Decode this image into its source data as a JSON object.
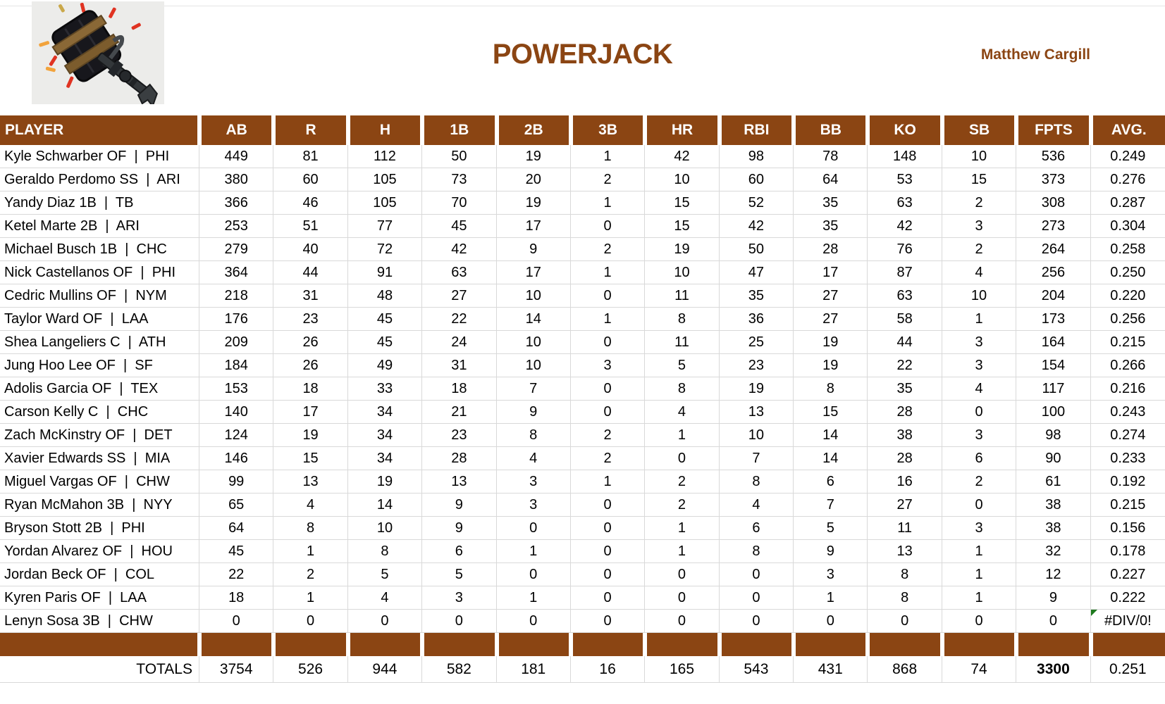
{
  "header": {
    "title": "POWERJACK",
    "owner": "Matthew Cargill",
    "logo_icon": "powerjack-hammer-logo"
  },
  "theme": {
    "brown": "#8B4513",
    "grid_line": "#D9D9D9",
    "header_text": "#FFFFFF",
    "error_green": "#1E7A1E"
  },
  "table": {
    "columns": [
      "PLAYER",
      "AB",
      "R",
      "H",
      "1B",
      "2B",
      "3B",
      "HR",
      "RBI",
      "BB",
      "KO",
      "SB",
      "FPTS",
      "AVG."
    ],
    "rows": [
      [
        "Kyle Schwarber OF  |  PHI",
        "449",
        "81",
        "112",
        "50",
        "19",
        "1",
        "42",
        "98",
        "78",
        "148",
        "10",
        "536",
        "0.249"
      ],
      [
        "Geraldo Perdomo SS  |  ARI",
        "380",
        "60",
        "105",
        "73",
        "20",
        "2",
        "10",
        "60",
        "64",
        "53",
        "15",
        "373",
        "0.276"
      ],
      [
        "Yandy Diaz 1B  |  TB",
        "366",
        "46",
        "105",
        "70",
        "19",
        "1",
        "15",
        "52",
        "35",
        "63",
        "2",
        "308",
        "0.287"
      ],
      [
        "Ketel Marte 2B  |  ARI",
        "253",
        "51",
        "77",
        "45",
        "17",
        "0",
        "15",
        "42",
        "35",
        "42",
        "3",
        "273",
        "0.304"
      ],
      [
        "Michael Busch 1B  |  CHC",
        "279",
        "40",
        "72",
        "42",
        "9",
        "2",
        "19",
        "50",
        "28",
        "76",
        "2",
        "264",
        "0.258"
      ],
      [
        "Nick Castellanos OF  |  PHI",
        "364",
        "44",
        "91",
        "63",
        "17",
        "1",
        "10",
        "47",
        "17",
        "87",
        "4",
        "256",
        "0.250"
      ],
      [
        "Cedric Mullins OF  |  NYM",
        "218",
        "31",
        "48",
        "27",
        "10",
        "0",
        "11",
        "35",
        "27",
        "63",
        "10",
        "204",
        "0.220"
      ],
      [
        "Taylor Ward OF  |  LAA",
        "176",
        "23",
        "45",
        "22",
        "14",
        "1",
        "8",
        "36",
        "27",
        "58",
        "1",
        "173",
        "0.256"
      ],
      [
        "Shea Langeliers C  |  ATH",
        "209",
        "26",
        "45",
        "24",
        "10",
        "0",
        "11",
        "25",
        "19",
        "44",
        "3",
        "164",
        "0.215"
      ],
      [
        "Jung Hoo Lee OF  |  SF",
        "184",
        "26",
        "49",
        "31",
        "10",
        "3",
        "5",
        "23",
        "19",
        "22",
        "3",
        "154",
        "0.266"
      ],
      [
        "Adolis Garcia OF  |  TEX",
        "153",
        "18",
        "33",
        "18",
        "7",
        "0",
        "8",
        "19",
        "8",
        "35",
        "4",
        "117",
        "0.216"
      ],
      [
        "Carson Kelly C  |  CHC",
        "140",
        "17",
        "34",
        "21",
        "9",
        "0",
        "4",
        "13",
        "15",
        "28",
        "0",
        "100",
        "0.243"
      ],
      [
        "Zach McKinstry OF  |  DET",
        "124",
        "19",
        "34",
        "23",
        "8",
        "2",
        "1",
        "10",
        "14",
        "38",
        "3",
        "98",
        "0.274"
      ],
      [
        "Xavier Edwards SS  |  MIA",
        "146",
        "15",
        "34",
        "28",
        "4",
        "2",
        "0",
        "7",
        "14",
        "28",
        "6",
        "90",
        "0.233"
      ],
      [
        "Miguel Vargas OF  |  CHW",
        "99",
        "13",
        "19",
        "13",
        "3",
        "1",
        "2",
        "8",
        "6",
        "16",
        "2",
        "61",
        "0.192"
      ],
      [
        "Ryan McMahon 3B  |  NYY",
        "65",
        "4",
        "14",
        "9",
        "3",
        "0",
        "2",
        "4",
        "7",
        "27",
        "0",
        "38",
        "0.215"
      ],
      [
        "Bryson Stott 2B  |  PHI",
        "64",
        "8",
        "10",
        "9",
        "0",
        "0",
        "1",
        "6",
        "5",
        "11",
        "3",
        "38",
        "0.156"
      ],
      [
        "Yordan Alvarez OF  |  HOU",
        "45",
        "1",
        "8",
        "6",
        "1",
        "0",
        "1",
        "8",
        "9",
        "13",
        "1",
        "32",
        "0.178"
      ],
      [
        "Jordan Beck OF  |  COL",
        "22",
        "2",
        "5",
        "5",
        "0",
        "0",
        "0",
        "0",
        "3",
        "8",
        "1",
        "12",
        "0.227"
      ],
      [
        "Kyren Paris OF  |  LAA",
        "18",
        "1",
        "4",
        "3",
        "1",
        "0",
        "0",
        "0",
        "1",
        "8",
        "1",
        "9",
        "0.222"
      ],
      [
        "Lenyn Sosa 3B  |  CHW",
        "0",
        "0",
        "0",
        "0",
        "0",
        "0",
        "0",
        "0",
        "0",
        "0",
        "0",
        "0",
        "#DIV/0!"
      ]
    ],
    "totals": [
      "TOTALS",
      "3754",
      "526",
      "944",
      "582",
      "181",
      "16",
      "165",
      "543",
      "431",
      "868",
      "74",
      "3300",
      "0.251"
    ],
    "error_marker": {
      "row_index": 20,
      "col_index": 13,
      "icon": "error-indicator-triangle"
    }
  }
}
